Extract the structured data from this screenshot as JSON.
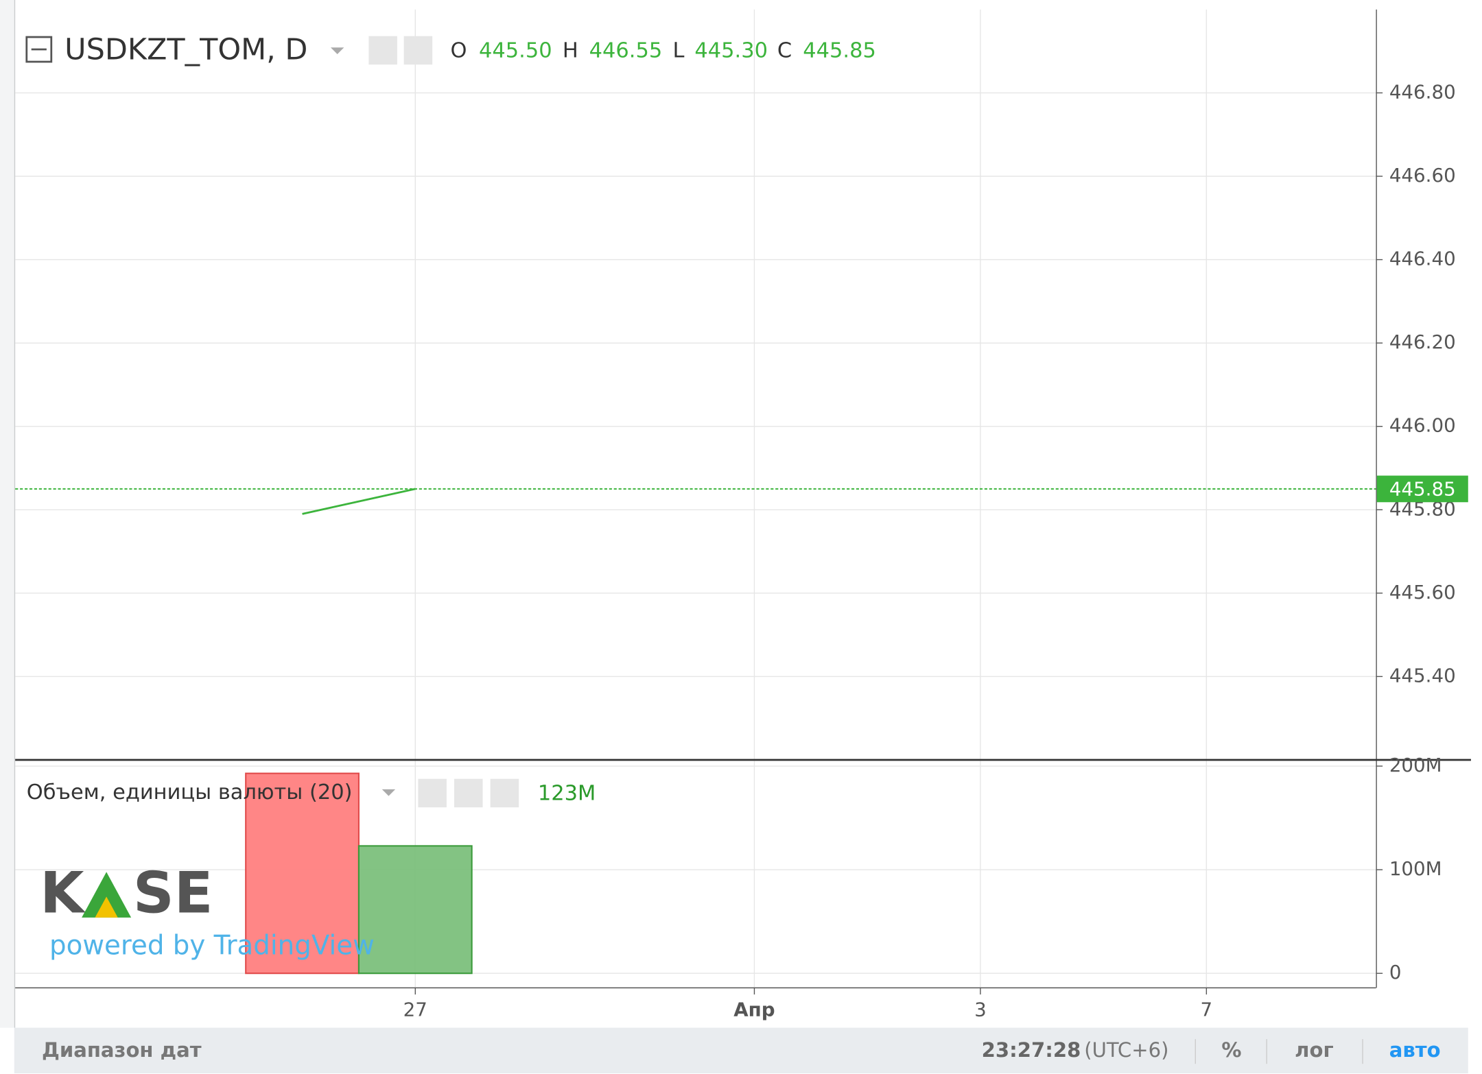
{
  "header": {
    "symbol": "USDKZT_TOM, D",
    "ohlc": [
      {
        "key": "O",
        "value": "445.50"
      },
      {
        "key": "H",
        "value": "446.55"
      },
      {
        "key": "L",
        "value": "445.30"
      },
      {
        "key": "C",
        "value": "445.85"
      }
    ]
  },
  "volume_legend": {
    "title": "Объем, единицы валюты (20)",
    "value": "123M"
  },
  "logo": {
    "brand_left": "K",
    "brand_right": "SE",
    "tagline": "powered by TradingView"
  },
  "footer": {
    "date_range": "Диапазон дат",
    "time": "23:27:28",
    "timezone": "(UTC+6)",
    "percent": "%",
    "log": "лог",
    "auto": "авто"
  },
  "chart_data": [
    {
      "type": "line",
      "x": [
        0,
        1
      ],
      "values": [
        445.79,
        445.85
      ],
      "color": "#3cb43c",
      "xlim": [
        -2.54,
        9.5
      ],
      "ylim": [
        445.2,
        447.0
      ],
      "yticks": [
        {
          "value": 446.8,
          "label": "446.80"
        },
        {
          "value": 446.6,
          "label": "446.60"
        },
        {
          "value": 446.4,
          "label": "446.40"
        },
        {
          "value": 446.2,
          "label": "446.20"
        },
        {
          "value": 446.0,
          "label": "446.00"
        },
        {
          "value": 445.8,
          "label": "445.80"
        },
        {
          "value": 445.6,
          "label": "445.60"
        },
        {
          "value": 445.4,
          "label": "445.40"
        }
      ],
      "grid": true
    },
    {
      "type": "bar",
      "x": [
        0,
        1
      ],
      "values": [
        193000000,
        123000000
      ],
      "colors": [
        "#ff7f7f",
        "#7cc07c"
      ],
      "xlim": [
        -2.54,
        9.5
      ],
      "ylim": [
        -14000000,
        206000000
      ],
      "yticks": [
        {
          "value": 200000000,
          "label": "200M"
        },
        {
          "value": 100000000,
          "label": "100M"
        },
        0
      ],
      "xticks": [
        {
          "value": 1,
          "label": "27"
        },
        {
          "value": 4,
          "label": "Апр"
        },
        {
          "value": 6,
          "label": "3"
        },
        {
          "value": 8,
          "label": "7"
        }
      ],
      "grid": true
    }
  ]
}
